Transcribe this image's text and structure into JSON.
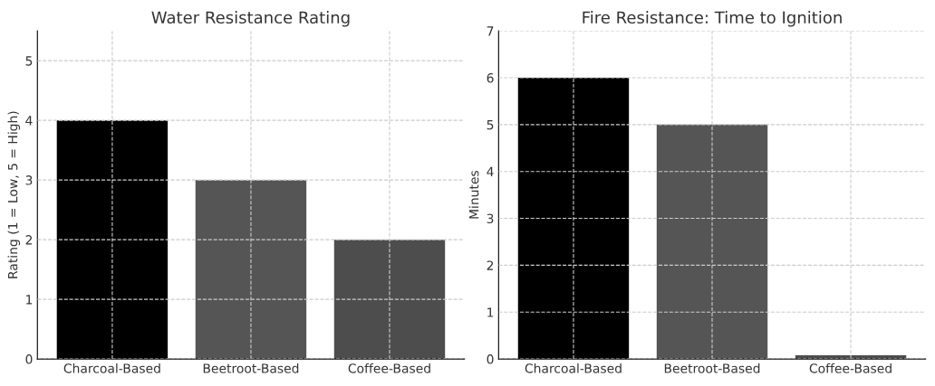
{
  "chart_data": [
    {
      "type": "bar",
      "title": "Water Resistance Rating",
      "ylabel": "Rating (1 = Low, 5 = High)",
      "categories": [
        "Charcoal-Based",
        "Beetroot-Based",
        "Coffee-Based"
      ],
      "values": [
        4,
        3,
        2
      ],
      "colors": [
        "#000000",
        "#555555",
        "#4d4d4d"
      ],
      "ylim": [
        0,
        5.5
      ],
      "yticks": [
        0,
        1,
        2,
        3,
        4,
        5
      ],
      "grid": true
    },
    {
      "type": "bar",
      "title": "Fire Resistance: Time to Ignition",
      "ylabel": "Minutes",
      "categories": [
        "Charcoal-Based",
        "Beetroot-Based",
        "Coffee-Based"
      ],
      "values": [
        6,
        5,
        0.08
      ],
      "colors": [
        "#000000",
        "#555555",
        "#4d4d4d"
      ],
      "ylim": [
        0,
        7
      ],
      "yticks": [
        0,
        1,
        2,
        3,
        4,
        5,
        6,
        7
      ],
      "grid": true
    }
  ]
}
